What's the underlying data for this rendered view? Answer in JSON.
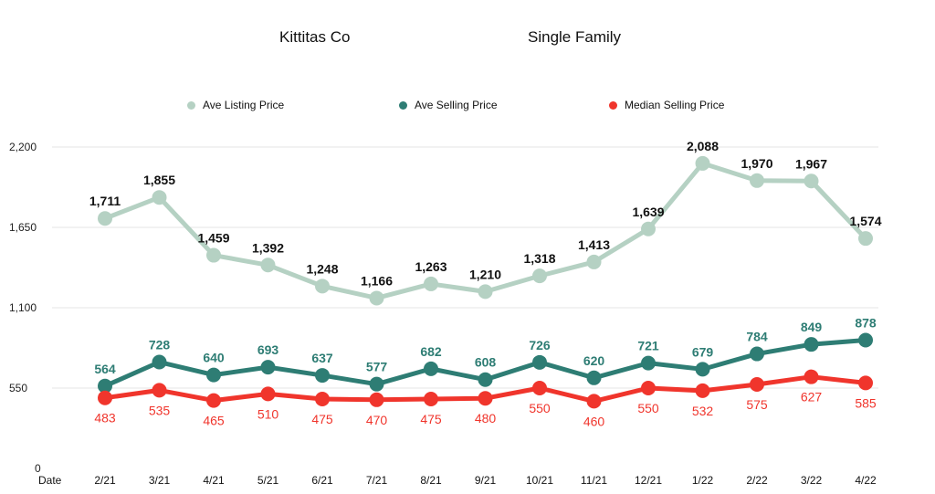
{
  "chart_data": {
    "type": "line",
    "title": "Kittitas Co",
    "subtitle": "Single Family",
    "xlabel": "Date",
    "ylabel": "",
    "categories": [
      "2/21",
      "3/21",
      "4/21",
      "5/21",
      "6/21",
      "7/21",
      "8/21",
      "9/21",
      "10/21",
      "11/21",
      "12/21",
      "1/22",
      "2/22",
      "3/22",
      "4/22"
    ],
    "ylim": [
      0,
      2200
    ],
    "yticks": [
      0,
      550,
      1100,
      1650,
      2200
    ],
    "ytick_labels": [
      "0",
      "550",
      "1,100",
      "1,650",
      "2,200"
    ],
    "grid": true,
    "legend_position": "top-center",
    "series": [
      {
        "name": "Ave Listing Price",
        "color": "#b5d1c3",
        "label_color": "#111111",
        "label_position": "above",
        "values": [
          1711,
          1855,
          1459,
          1392,
          1248,
          1166,
          1263,
          1210,
          1318,
          1413,
          1639,
          2088,
          1970,
          1967,
          1574
        ],
        "labels": [
          "1,711",
          "1,855",
          "1,459",
          "1,392",
          "1,248",
          "1,166",
          "1,263",
          "1,210",
          "1,318",
          "1,413",
          "1,639",
          "2,088",
          "1,970",
          "1,967",
          "1,574"
        ]
      },
      {
        "name": "Ave Selling Price",
        "color": "#2e7d74",
        "label_color": "#2e7d74",
        "label_position": "above",
        "values": [
          564,
          728,
          640,
          693,
          637,
          577,
          682,
          608,
          726,
          620,
          721,
          679,
          784,
          849,
          878
        ],
        "labels": [
          "564",
          "728",
          "640",
          "693",
          "637",
          "577",
          "682",
          "608",
          "726",
          "620",
          "721",
          "679",
          "784",
          "849",
          "878"
        ]
      },
      {
        "name": "Median Selling Price",
        "color": "#f0352c",
        "label_color": "#f0352c",
        "label_position": "below",
        "values": [
          483,
          535,
          465,
          510,
          475,
          470,
          475,
          480,
          550,
          460,
          550,
          532,
          575,
          627,
          585
        ],
        "labels": [
          "483",
          "535",
          "465",
          "510",
          "475",
          "470",
          "475",
          "480",
          "550",
          "460",
          "550",
          "532",
          "575",
          "627",
          "585"
        ]
      }
    ]
  }
}
